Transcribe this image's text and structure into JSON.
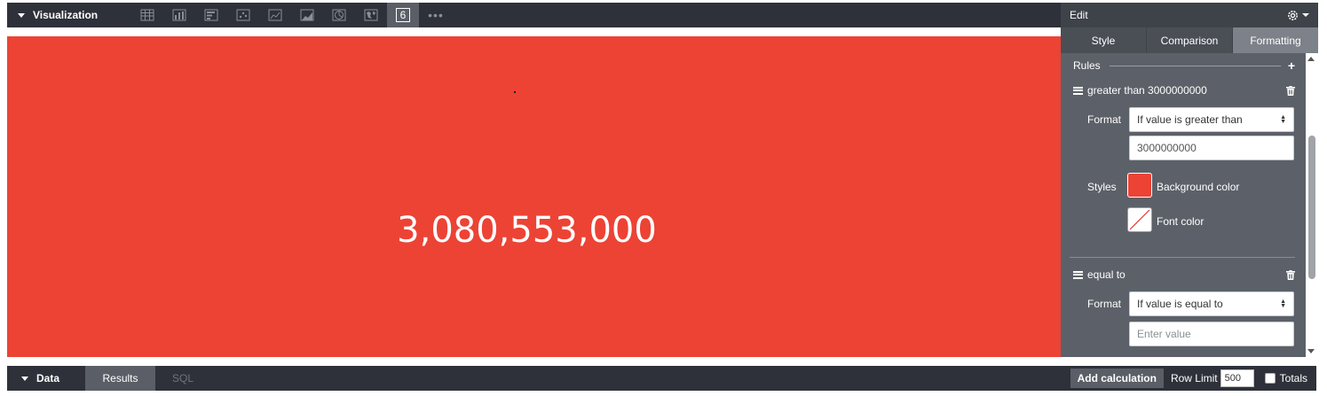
{
  "visualization": {
    "title": "Visualization",
    "icons": [
      "table-icon",
      "column-chart-icon",
      "bar-chart-icon",
      "scatter-icon",
      "line-chart-icon",
      "area-chart-icon",
      "pie-chart-icon",
      "map-icon",
      "single-value-icon"
    ],
    "single_value_glyph": "6",
    "more": "•••",
    "value": "3,080,553,000",
    "background_color": "#ec4335"
  },
  "edit": {
    "title": "Edit",
    "tabs": [
      "Style",
      "Comparison",
      "Formatting"
    ],
    "active_tab": "Formatting",
    "rules_label": "Rules",
    "rules": [
      {
        "name": "greater than 3000000000",
        "format_label": "Format",
        "format_value": "If value is greater than",
        "value": "3000000000",
        "styles_label": "Styles",
        "background_color_label": "Background color",
        "font_color_label": "Font color",
        "background_color": "#ec4335"
      },
      {
        "name": "equal to",
        "format_label": "Format",
        "format_value": "If value is equal to",
        "value_placeholder": "Enter value"
      }
    ]
  },
  "data_bar": {
    "title": "Data",
    "tabs": [
      "Results",
      "SQL"
    ],
    "active_tab": "Results",
    "add_calculation": "Add calculation",
    "row_limit_label": "Row Limit",
    "row_limit": "500",
    "totals_label": "Totals",
    "totals_checked": false
  }
}
